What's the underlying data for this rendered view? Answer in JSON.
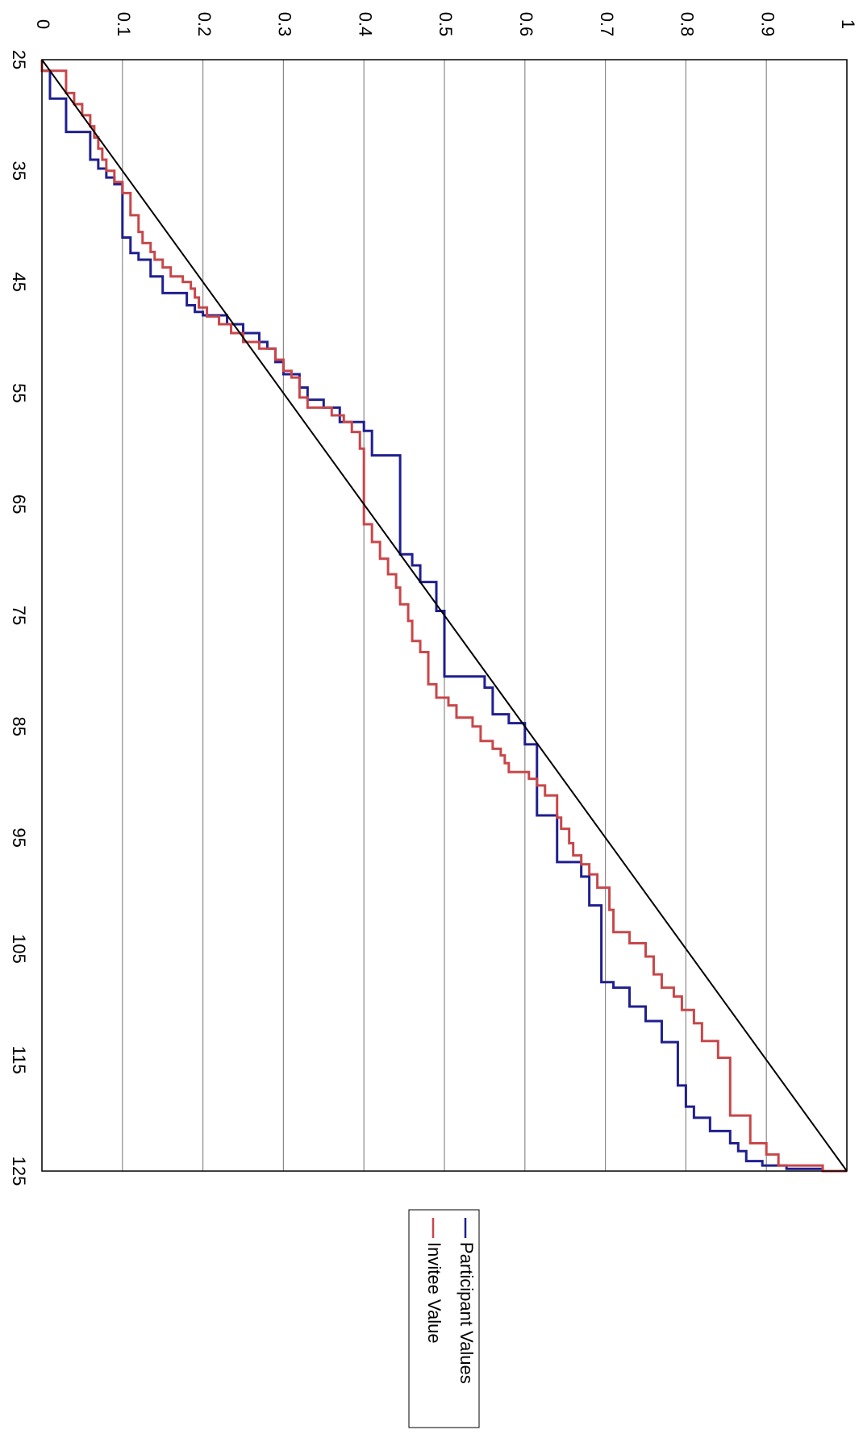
{
  "chart_data": {
    "type": "line",
    "orientation": "rotated-90-clockwise",
    "xlim": [
      25,
      125
    ],
    "ylim": [
      0,
      1
    ],
    "x_ticks": [
      "25",
      "35",
      "45",
      "55",
      "65",
      "75",
      "85",
      "95",
      "105",
      "115",
      "125"
    ],
    "y_ticks": [
      "0",
      "0.1",
      "0.2",
      "0.3",
      "0.4",
      "0.5",
      "0.6",
      "0.7",
      "0.8",
      "0.9",
      "1"
    ],
    "grid": true,
    "legend_position": "right",
    "series": [
      {
        "name": "Participant Values",
        "color": "#1f1f8f",
        "step": true,
        "points": [
          [
            25,
            0
          ],
          [
            26,
            0.01
          ],
          [
            28.5,
            0.03
          ],
          [
            31.5,
            0.06
          ],
          [
            34,
            0.07
          ],
          [
            34.8,
            0.08
          ],
          [
            35.6,
            0.09
          ],
          [
            36.2,
            0.1
          ],
          [
            41,
            0.11
          ],
          [
            42.4,
            0.12
          ],
          [
            43,
            0.135
          ],
          [
            44.5,
            0.15
          ],
          [
            46,
            0.18
          ],
          [
            47.1,
            0.19
          ],
          [
            47.7,
            0.2
          ],
          [
            48,
            0.23
          ],
          [
            48.8,
            0.25
          ],
          [
            49.6,
            0.27
          ],
          [
            50.4,
            0.28
          ],
          [
            51,
            0.29
          ],
          [
            52.2,
            0.3
          ],
          [
            53.3,
            0.32
          ],
          [
            54.5,
            0.33
          ],
          [
            55.6,
            0.35
          ],
          [
            56.3,
            0.37
          ],
          [
            57.6,
            0.4
          ],
          [
            58.4,
            0.41
          ],
          [
            60.6,
            0.445
          ],
          [
            69.5,
            0.46
          ],
          [
            70.5,
            0.47
          ],
          [
            72,
            0.49
          ],
          [
            74.6,
            0.5
          ],
          [
            80.5,
            0.55
          ],
          [
            81.5,
            0.56
          ],
          [
            83.9,
            0.58
          ],
          [
            84.7,
            0.6
          ],
          [
            86.6,
            0.615
          ],
          [
            93,
            0.64
          ],
          [
            95.4,
            0.64
          ],
          [
            97.2,
            0.67
          ],
          [
            98.5,
            0.68
          ],
          [
            101.1,
            0.695
          ],
          [
            108,
            0.71
          ],
          [
            108.5,
            0.73
          ],
          [
            110.2,
            0.75
          ],
          [
            111.5,
            0.77
          ],
          [
            113.4,
            0.79
          ],
          [
            117.3,
            0.8
          ],
          [
            119.2,
            0.81
          ],
          [
            120.2,
            0.83
          ],
          [
            121.4,
            0.855
          ],
          [
            122.5,
            0.865
          ],
          [
            123.2,
            0.875
          ],
          [
            124.1,
            0.895
          ],
          [
            124.5,
            0.925
          ],
          [
            124.8,
            0.97
          ],
          [
            125,
            1.0
          ]
        ]
      },
      {
        "name": "Invitee Value",
        "color": "#c8474a",
        "step": true,
        "points": [
          [
            25,
            0
          ],
          [
            26,
            0.03
          ],
          [
            27,
            0.03
          ],
          [
            28,
            0.04
          ],
          [
            29,
            0.05
          ],
          [
            30,
            0.06
          ],
          [
            31,
            0.065
          ],
          [
            32,
            0.07
          ],
          [
            33,
            0.075
          ],
          [
            34,
            0.08
          ],
          [
            35,
            0.09
          ],
          [
            36,
            0.1
          ],
          [
            37,
            0.11
          ],
          [
            39,
            0.12
          ],
          [
            40.5,
            0.125
          ],
          [
            41.5,
            0.135
          ],
          [
            42.3,
            0.14
          ],
          [
            43,
            0.15
          ],
          [
            43.7,
            0.16
          ],
          [
            44.5,
            0.175
          ],
          [
            45,
            0.185
          ],
          [
            45.6,
            0.19
          ],
          [
            46.4,
            0.195
          ],
          [
            47.3,
            0.205
          ],
          [
            48.1,
            0.22
          ],
          [
            48.8,
            0.235
          ],
          [
            49.6,
            0.25
          ],
          [
            50.4,
            0.27
          ],
          [
            51,
            0.29
          ],
          [
            52,
            0.3
          ],
          [
            53,
            0.31
          ],
          [
            53.6,
            0.32
          ],
          [
            55.4,
            0.33
          ],
          [
            56.3,
            0.36
          ],
          [
            57,
            0.375
          ],
          [
            57.6,
            0.385
          ],
          [
            58.5,
            0.395
          ],
          [
            60,
            0.4
          ],
          [
            66.8,
            0.41
          ],
          [
            68.4,
            0.42
          ],
          [
            69.9,
            0.43
          ],
          [
            71.3,
            0.44
          ],
          [
            72.5,
            0.445
          ],
          [
            74,
            0.455
          ],
          [
            75.5,
            0.46
          ],
          [
            77.3,
            0.47
          ],
          [
            78.3,
            0.48
          ],
          [
            81.2,
            0.49
          ],
          [
            82.4,
            0.505
          ],
          [
            83.1,
            0.515
          ],
          [
            84.2,
            0.535
          ],
          [
            85,
            0.545
          ],
          [
            86.3,
            0.56
          ],
          [
            87,
            0.57
          ],
          [
            87.6,
            0.575
          ],
          [
            88.3,
            0.58
          ],
          [
            89.1,
            0.605
          ],
          [
            89.7,
            0.615
          ],
          [
            90.3,
            0.625
          ],
          [
            91.2,
            0.64
          ],
          [
            93.2,
            0.645
          ],
          [
            94.2,
            0.655
          ],
          [
            95.5,
            0.66
          ],
          [
            96.6,
            0.67
          ],
          [
            97.4,
            0.68
          ],
          [
            98.3,
            0.69
          ],
          [
            99.5,
            0.705
          ],
          [
            101.5,
            0.71
          ],
          [
            103.5,
            0.73
          ],
          [
            104.5,
            0.75
          ],
          [
            105.7,
            0.76
          ],
          [
            107.3,
            0.77
          ],
          [
            108.5,
            0.785
          ],
          [
            109.3,
            0.795
          ],
          [
            110.5,
            0.81
          ],
          [
            111.7,
            0.82
          ],
          [
            113.3,
            0.84
          ],
          [
            114.8,
            0.855
          ],
          [
            120,
            0.88
          ],
          [
            122.5,
            0.9
          ],
          [
            123.5,
            0.915
          ],
          [
            124.5,
            0.97
          ],
          [
            125,
            1.0
          ]
        ]
      },
      {
        "name": "",
        "color": "#000000",
        "step": false,
        "points": [
          [
            25,
            0
          ],
          [
            125,
            1
          ]
        ]
      }
    ]
  }
}
